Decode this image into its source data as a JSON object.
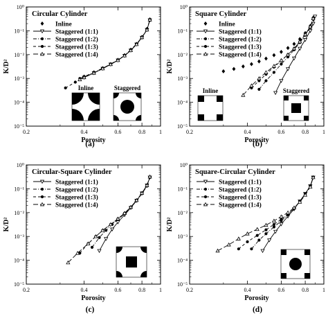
{
  "figure": {
    "charts": [
      {
        "id": "a",
        "panel_label": "(a)",
        "title": "Circular Cylinder",
        "xlabel": "Porosity",
        "ylabel": "K/D²",
        "legend_position": "top-left",
        "inset_labels": [
          "Inline",
          "Staggered"
        ],
        "inset": "circular-inline-staggered"
      },
      {
        "id": "b",
        "panel_label": "(b)",
        "title": "Square Cylinder",
        "xlabel": "Porosity",
        "ylabel": "K/D²",
        "legend_position": "top-left",
        "inset_labels": [
          "Inline",
          "Staggered"
        ],
        "inset": "square-inline-staggered"
      },
      {
        "id": "c",
        "panel_label": "(c)",
        "title": "Circular-Square Cylinder",
        "xlabel": "Porosity",
        "ylabel": "K/D²",
        "legend_position": "top-left",
        "inset_labels": [],
        "inset": "circle-corners-square-center"
      },
      {
        "id": "d",
        "panel_label": "(d)",
        "title": "Square-Circular Cylinder",
        "xlabel": "Porosity",
        "ylabel": "K/D²",
        "legend_position": "top-left",
        "inset_labels": [],
        "inset": "square-corners-circle-center"
      }
    ]
  },
  "chart_data": [
    {
      "type": "line",
      "panel": "a",
      "xscale": "log",
      "yscale": "log",
      "xlim": [
        0.2,
        1
      ],
      "ylim": [
        1e-05,
        1
      ],
      "xticks": [
        "0.2",
        "0.4",
        "0.6",
        "0.8",
        "1"
      ],
      "yticks": [
        "10⁻⁵",
        "10⁻⁴",
        "10⁻³",
        "10⁻²",
        "10⁻¹",
        "10⁰"
      ],
      "series": [
        {
          "name": "Inline",
          "style": "points",
          "marker": "diamond",
          "x": [
            0.4,
            0.45,
            0.5,
            0.55,
            0.6,
            0.65,
            0.7,
            0.75,
            0.8,
            0.85,
            0.88
          ],
          "y": [
            0.0012,
            0.0018,
            0.0027,
            0.004,
            0.006,
            0.0095,
            0.016,
            0.028,
            0.055,
            0.12,
            0.3
          ]
        },
        {
          "name": "Staggered (1:1)",
          "style": "solid",
          "marker": "triangle-down",
          "x": [
            0.4,
            0.45,
            0.5,
            0.55,
            0.6,
            0.65,
            0.7,
            0.75,
            0.8,
            0.85,
            0.88
          ],
          "y": [
            0.0011,
            0.0017,
            0.0026,
            0.0039,
            0.0058,
            0.009,
            0.015,
            0.027,
            0.052,
            0.11,
            0.28
          ]
        },
        {
          "name": "Staggered (1:2)",
          "style": "dashdot",
          "marker": "circle",
          "x": [
            0.38,
            0.4,
            0.45,
            0.5,
            0.55,
            0.6,
            0.65,
            0.7,
            0.75,
            0.8,
            0.85,
            0.88
          ],
          "y": [
            0.001,
            0.0012,
            0.0018,
            0.0027,
            0.004,
            0.006,
            0.0093,
            0.016,
            0.028,
            0.054,
            0.11,
            0.29
          ]
        },
        {
          "name": "Staggered (1:3)",
          "style": "dashed",
          "marker": "circle",
          "x": [
            0.32,
            0.36,
            0.4,
            0.45,
            0.5,
            0.55,
            0.6,
            0.65,
            0.7,
            0.75,
            0.8,
            0.85,
            0.88
          ],
          "y": [
            0.0004,
            0.0007,
            0.0011,
            0.0017,
            0.0026,
            0.0039,
            0.0059,
            0.0092,
            0.015,
            0.027,
            0.053,
            0.11,
            0.3
          ]
        },
        {
          "name": "Staggered (1:4)",
          "style": "longdash",
          "marker": "triangle-up",
          "x": [
            0.38,
            0.4,
            0.45,
            0.5,
            0.55,
            0.6,
            0.65,
            0.7,
            0.75,
            0.8,
            0.85,
            0.88
          ],
          "y": [
            0.0009,
            0.0011,
            0.0017,
            0.0026,
            0.0039,
            0.0058,
            0.0091,
            0.015,
            0.027,
            0.053,
            0.11,
            0.29
          ]
        }
      ]
    },
    {
      "type": "line",
      "panel": "b",
      "xscale": "log",
      "yscale": "log",
      "xlim": [
        0.2,
        1
      ],
      "ylim": [
        1e-05,
        1
      ],
      "xticks": [
        "0.2",
        "0.4",
        "0.6",
        "0.8",
        "1"
      ],
      "yticks": [
        "10⁻⁵",
        "10⁻⁴",
        "10⁻³",
        "10⁻²",
        "10⁻¹",
        "10⁰"
      ],
      "series": [
        {
          "name": "Inline",
          "style": "points",
          "marker": "diamond",
          "x": [
            0.3,
            0.34,
            0.38,
            0.42,
            0.46,
            0.5,
            0.55,
            0.6,
            0.65,
            0.7,
            0.75,
            0.8,
            0.85,
            0.88
          ],
          "y": [
            0.002,
            0.0025,
            0.0032,
            0.004,
            0.0052,
            0.0068,
            0.0095,
            0.013,
            0.019,
            0.028,
            0.045,
            0.08,
            0.16,
            0.35
          ]
        },
        {
          "name": "Staggered (1:1)",
          "style": "solid",
          "marker": "triangle-down",
          "x": [
            0.56,
            0.6,
            0.65,
            0.7,
            0.75,
            0.8,
            0.85,
            0.88,
            0.9
          ],
          "y": [
            0.00025,
            0.0008,
            0.0025,
            0.007,
            0.018,
            0.042,
            0.1,
            0.2,
            0.4
          ]
        },
        {
          "name": "Staggered (1:2)",
          "style": "dashdot",
          "marker": "circle",
          "x": [
            0.46,
            0.5,
            0.55,
            0.6,
            0.65,
            0.7,
            0.75,
            0.8,
            0.85,
            0.88
          ],
          "y": [
            0.00035,
            0.0008,
            0.0018,
            0.004,
            0.008,
            0.016,
            0.032,
            0.065,
            0.14,
            0.3
          ]
        },
        {
          "name": "Staggered (1:3)",
          "style": "dashed",
          "marker": "circle",
          "x": [
            0.42,
            0.46,
            0.5,
            0.55,
            0.6,
            0.65,
            0.7,
            0.75,
            0.8,
            0.85,
            0.88
          ],
          "y": [
            0.0004,
            0.0008,
            0.0015,
            0.003,
            0.0055,
            0.01,
            0.018,
            0.035,
            0.07,
            0.15,
            0.32
          ]
        },
        {
          "name": "Staggered (1:4)",
          "style": "longdash",
          "marker": "triangle-up",
          "x": [
            0.38,
            0.42,
            0.46,
            0.5,
            0.55,
            0.6,
            0.65,
            0.7,
            0.75,
            0.8,
            0.85,
            0.88
          ],
          "y": [
            0.0002,
            0.0005,
            0.001,
            0.0018,
            0.0033,
            0.0058,
            0.01,
            0.018,
            0.035,
            0.07,
            0.15,
            0.33
          ]
        }
      ]
    },
    {
      "type": "line",
      "panel": "c",
      "xscale": "log",
      "yscale": "log",
      "xlim": [
        0.2,
        1
      ],
      "ylim": [
        1e-05,
        1
      ],
      "xticks": [
        "0.2",
        "0.4",
        "0.6",
        "0.8",
        "1"
      ],
      "yticks": [
        "10⁻⁵",
        "10⁻⁴",
        "10⁻³",
        "10⁻²",
        "10⁻¹",
        "10⁰"
      ],
      "series": [
        {
          "name": "Staggered (1:1)",
          "style": "solid",
          "marker": "triangle-down",
          "x": [
            0.48,
            0.52,
            0.56,
            0.6,
            0.65,
            0.7,
            0.75,
            0.8,
            0.85,
            0.88
          ],
          "y": [
            0.00025,
            0.0008,
            0.002,
            0.004,
            0.008,
            0.016,
            0.032,
            0.065,
            0.14,
            0.3
          ]
        },
        {
          "name": "Staggered (1:2)",
          "style": "dashdot",
          "marker": "circle",
          "x": [
            0.44,
            0.48,
            0.52,
            0.56,
            0.6,
            0.65,
            0.7,
            0.75,
            0.8,
            0.85,
            0.88
          ],
          "y": [
            0.00035,
            0.0009,
            0.0018,
            0.0032,
            0.0052,
            0.009,
            0.016,
            0.031,
            0.062,
            0.13,
            0.3
          ]
        },
        {
          "name": "Staggered (1:3)",
          "style": "dashed",
          "marker": "circle",
          "x": [
            0.38,
            0.42,
            0.46,
            0.5,
            0.55,
            0.6,
            0.65,
            0.7,
            0.75,
            0.8,
            0.85,
            0.88
          ],
          "y": [
            0.0002,
            0.0005,
            0.001,
            0.0018,
            0.0032,
            0.0055,
            0.0095,
            0.017,
            0.033,
            0.065,
            0.14,
            0.31
          ]
        },
        {
          "name": "Staggered (1:4)",
          "style": "longdash",
          "marker": "triangle-up",
          "x": [
            0.33,
            0.37,
            0.42,
            0.46,
            0.5,
            0.55,
            0.6,
            0.65,
            0.7,
            0.75,
            0.8,
            0.85,
            0.88
          ],
          "y": [
            8e-05,
            0.0002,
            0.0005,
            0.001,
            0.0018,
            0.0032,
            0.0055,
            0.0095,
            0.017,
            0.033,
            0.066,
            0.14,
            0.32
          ]
        }
      ]
    },
    {
      "type": "line",
      "panel": "d",
      "xscale": "log",
      "yscale": "log",
      "xlim": [
        0.2,
        1
      ],
      "ylim": [
        1e-05,
        1
      ],
      "xticks": [
        "0.2",
        "0.4",
        "0.6",
        "0.8",
        "1"
      ],
      "yticks": [
        "10⁻⁵",
        "10⁻⁴",
        "10⁻³",
        "10⁻²",
        "10⁻¹",
        "10⁰"
      ],
      "series": [
        {
          "name": "Staggered (1:1)",
          "style": "solid",
          "marker": "triangle-down",
          "x": [
            0.48,
            0.52,
            0.56,
            0.6,
            0.65,
            0.7,
            0.75,
            0.8,
            0.85,
            0.88
          ],
          "y": [
            0.00025,
            0.0007,
            0.0016,
            0.0033,
            0.007,
            0.014,
            0.03,
            0.062,
            0.13,
            0.3
          ]
        },
        {
          "name": "Staggered (1:2)",
          "style": "dashdot",
          "marker": "circle",
          "x": [
            0.42,
            0.46,
            0.5,
            0.55,
            0.6,
            0.65,
            0.7,
            0.75,
            0.8,
            0.85,
            0.88
          ],
          "y": [
            0.0003,
            0.0007,
            0.0013,
            0.0025,
            0.0045,
            0.008,
            0.015,
            0.03,
            0.062,
            0.13,
            0.3
          ]
        },
        {
          "name": "Staggered (1:3)",
          "style": "dashed",
          "marker": "circle",
          "x": [
            0.36,
            0.4,
            0.45,
            0.5,
            0.55,
            0.6,
            0.65,
            0.7,
            0.75,
            0.8,
            0.85,
            0.88
          ],
          "y": [
            0.0003,
            0.0006,
            0.0011,
            0.0019,
            0.0032,
            0.0052,
            0.0088,
            0.015,
            0.029,
            0.06,
            0.13,
            0.3
          ]
        },
        {
          "name": "Staggered (1:4)",
          "style": "longdash",
          "marker": "triangle-up",
          "x": [
            0.28,
            0.32,
            0.36,
            0.4,
            0.45,
            0.5,
            0.55,
            0.6,
            0.65,
            0.7,
            0.75,
            0.8,
            0.85,
            0.88
          ],
          "y": [
            0.00025,
            0.00045,
            0.0008,
            0.0013,
            0.002,
            0.003,
            0.0045,
            0.0068,
            0.01,
            0.016,
            0.028,
            0.055,
            0.12,
            0.3
          ]
        }
      ]
    }
  ]
}
